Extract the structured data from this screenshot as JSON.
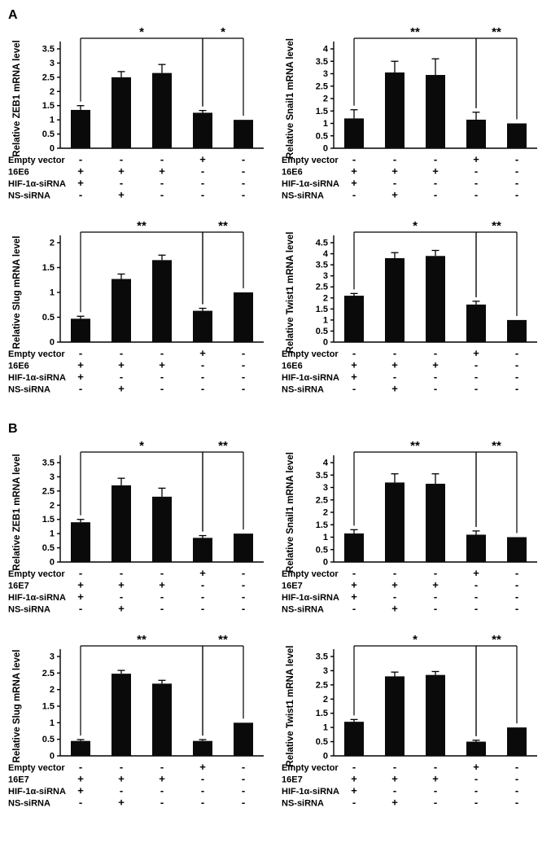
{
  "figure": {
    "bar_color": "#0a0a0a",
    "panels": [
      {
        "label": "A"
      },
      {
        "label": "B"
      }
    ]
  },
  "chart_data": [
    {
      "panel": "A",
      "position": "top-left",
      "type": "bar",
      "ylabel": "Relative ZEB1 mRNA level",
      "ylim": [
        0,
        3.5
      ],
      "ytick_step": 0.5,
      "values": [
        1.35,
        2.5,
        2.65,
        1.25,
        1.0
      ],
      "errors": [
        0.15,
        0.2,
        0.3,
        0.08,
        0
      ],
      "brackets": [
        {
          "from": 0,
          "to": 3,
          "label": "*"
        },
        {
          "from": 3,
          "to": 4,
          "label": "*"
        }
      ],
      "conditions": [
        {
          "label": "Empty vector",
          "values": [
            "-",
            "-",
            "-",
            "+",
            "-"
          ]
        },
        {
          "label": "16E6",
          "values": [
            "+",
            "+",
            "+",
            "-",
            "-"
          ]
        },
        {
          "label": "HIF-1α-siRNA",
          "values": [
            "+",
            "-",
            "-",
            "-",
            "-"
          ]
        },
        {
          "label": "NS-siRNA",
          "values": [
            "-",
            "+",
            "-",
            "-",
            "-"
          ]
        }
      ]
    },
    {
      "panel": "A",
      "position": "top-right",
      "type": "bar",
      "ylabel": "Relative Snail1 mRNA level",
      "ylim": [
        0,
        4
      ],
      "ytick_step": 0.5,
      "values": [
        1.2,
        3.05,
        2.95,
        1.15,
        1.0
      ],
      "errors": [
        0.35,
        0.45,
        0.65,
        0.3,
        0
      ],
      "brackets": [
        {
          "from": 0,
          "to": 3,
          "label": "**"
        },
        {
          "from": 3,
          "to": 4,
          "label": "**"
        }
      ],
      "conditions": [
        {
          "label": "Empty vector",
          "values": [
            "-",
            "-",
            "-",
            "+",
            "-"
          ]
        },
        {
          "label": "16E6",
          "values": [
            "+",
            "+",
            "+",
            "-",
            "-"
          ]
        },
        {
          "label": "HIF-1α-siRNA",
          "values": [
            "+",
            "-",
            "-",
            "-",
            "-"
          ]
        },
        {
          "label": "NS-siRNA",
          "values": [
            "-",
            "+",
            "-",
            "-",
            "-"
          ]
        }
      ]
    },
    {
      "panel": "A",
      "position": "bottom-left",
      "type": "bar",
      "ylabel": "Relative Slug mRNA level",
      "ylim": [
        0,
        2
      ],
      "ytick_step": 0.5,
      "values": [
        0.47,
        1.27,
        1.65,
        0.63,
        1.0
      ],
      "errors": [
        0.05,
        0.1,
        0.1,
        0.05,
        0
      ],
      "brackets": [
        {
          "from": 0,
          "to": 3,
          "label": "**"
        },
        {
          "from": 3,
          "to": 4,
          "label": "**"
        }
      ],
      "conditions": [
        {
          "label": "Empty vector",
          "values": [
            "-",
            "-",
            "-",
            "+",
            "-"
          ]
        },
        {
          "label": "16E6",
          "values": [
            "+",
            "+",
            "+",
            "-",
            "-"
          ]
        },
        {
          "label": "HIF-1α-siRNA",
          "values": [
            "+",
            "-",
            "-",
            "-",
            "-"
          ]
        },
        {
          "label": "NS-siRNA",
          "values": [
            "-",
            "+",
            "-",
            "-",
            "-"
          ]
        }
      ]
    },
    {
      "panel": "A",
      "position": "bottom-right",
      "type": "bar",
      "ylabel": "Relative Twist1 mRNA level",
      "ylim": [
        0,
        4.5
      ],
      "ytick_step": 0.5,
      "values": [
        2.1,
        3.8,
        3.9,
        1.7,
        1.0
      ],
      "errors": [
        0.1,
        0.25,
        0.25,
        0.15,
        0
      ],
      "brackets": [
        {
          "from": 0,
          "to": 3,
          "label": "*"
        },
        {
          "from": 3,
          "to": 4,
          "label": "**"
        }
      ],
      "conditions": [
        {
          "label": "Empty vector",
          "values": [
            "-",
            "-",
            "-",
            "+",
            "-"
          ]
        },
        {
          "label": "16E6",
          "values": [
            "+",
            "+",
            "+",
            "-",
            "-"
          ]
        },
        {
          "label": "HIF-1α-siRNA",
          "values": [
            "+",
            "-",
            "-",
            "-",
            "-"
          ]
        },
        {
          "label": "NS-siRNA",
          "values": [
            "-",
            "+",
            "-",
            "-",
            "-"
          ]
        }
      ]
    },
    {
      "panel": "B",
      "position": "top-left",
      "type": "bar",
      "ylabel": "Relative ZEB1 mRNA level",
      "ylim": [
        0,
        3.5
      ],
      "ytick_step": 0.5,
      "values": [
        1.4,
        2.7,
        2.3,
        0.85,
        1.0
      ],
      "errors": [
        0.1,
        0.25,
        0.3,
        0.08,
        0
      ],
      "brackets": [
        {
          "from": 0,
          "to": 3,
          "label": "*"
        },
        {
          "from": 3,
          "to": 4,
          "label": "**"
        }
      ],
      "conditions": [
        {
          "label": "Empty vector",
          "values": [
            "-",
            "-",
            "-",
            "+",
            "-"
          ]
        },
        {
          "label": "16E7",
          "values": [
            "+",
            "+",
            "+",
            "-",
            "-"
          ]
        },
        {
          "label": "HIF-1α-siRNA",
          "values": [
            "+",
            "-",
            "-",
            "-",
            "-"
          ]
        },
        {
          "label": "NS-siRNA",
          "values": [
            "-",
            "+",
            "-",
            "-",
            "-"
          ]
        }
      ]
    },
    {
      "panel": "B",
      "position": "top-right",
      "type": "bar",
      "ylabel": "Relative Snail1 mRNA level",
      "ylim": [
        0,
        4
      ],
      "ytick_step": 0.5,
      "values": [
        1.15,
        3.2,
        3.15,
        1.1,
        1.0
      ],
      "errors": [
        0.15,
        0.35,
        0.4,
        0.15,
        0
      ],
      "brackets": [
        {
          "from": 0,
          "to": 3,
          "label": "**"
        },
        {
          "from": 3,
          "to": 4,
          "label": "**"
        }
      ],
      "conditions": [
        {
          "label": "Empty vector",
          "values": [
            "-",
            "-",
            "-",
            "+",
            "-"
          ]
        },
        {
          "label": "16E7",
          "values": [
            "+",
            "+",
            "+",
            "-",
            "-"
          ]
        },
        {
          "label": "HIF-1α-siRNA",
          "values": [
            "+",
            "-",
            "-",
            "-",
            "-"
          ]
        },
        {
          "label": "NS-siRNA",
          "values": [
            "-",
            "+",
            "-",
            "-",
            "-"
          ]
        }
      ]
    },
    {
      "panel": "B",
      "position": "bottom-left",
      "type": "bar",
      "ylabel": "Relative Slug mRNA level",
      "ylim": [
        0,
        3
      ],
      "ytick_step": 0.5,
      "values": [
        0.45,
        2.48,
        2.18,
        0.45,
        1.0
      ],
      "errors": [
        0.04,
        0.1,
        0.1,
        0.04,
        0
      ],
      "brackets": [
        {
          "from": 0,
          "to": 3,
          "label": "**"
        },
        {
          "from": 3,
          "to": 4,
          "label": "**"
        }
      ],
      "conditions": [
        {
          "label": "Empty vector",
          "values": [
            "-",
            "-",
            "-",
            "+",
            "-"
          ]
        },
        {
          "label": "16E7",
          "values": [
            "+",
            "+",
            "+",
            "-",
            "-"
          ]
        },
        {
          "label": "HIF-1α-siRNA",
          "values": [
            "+",
            "-",
            "-",
            "-",
            "-"
          ]
        },
        {
          "label": "NS-siRNA",
          "values": [
            "-",
            "+",
            "-",
            "-",
            "-"
          ]
        }
      ]
    },
    {
      "panel": "B",
      "position": "bottom-right",
      "type": "bar",
      "ylabel": "Relative Twist1 mRNA level",
      "ylim": [
        0,
        3.5
      ],
      "ytick_step": 0.5,
      "values": [
        1.2,
        2.8,
        2.85,
        0.5,
        1.0
      ],
      "errors": [
        0.08,
        0.15,
        0.12,
        0.05,
        0
      ],
      "brackets": [
        {
          "from": 0,
          "to": 3,
          "label": "*"
        },
        {
          "from": 3,
          "to": 4,
          "label": "**"
        }
      ],
      "conditions": [
        {
          "label": "Empty vector",
          "values": [
            "-",
            "-",
            "-",
            "+",
            "-"
          ]
        },
        {
          "label": "16E7",
          "values": [
            "+",
            "+",
            "+",
            "-",
            "-"
          ]
        },
        {
          "label": "HIF-1α-siRNA",
          "values": [
            "+",
            "-",
            "-",
            "-",
            "-"
          ]
        },
        {
          "label": "NS-siRNA",
          "values": [
            "-",
            "+",
            "-",
            "-",
            "-"
          ]
        }
      ]
    }
  ]
}
